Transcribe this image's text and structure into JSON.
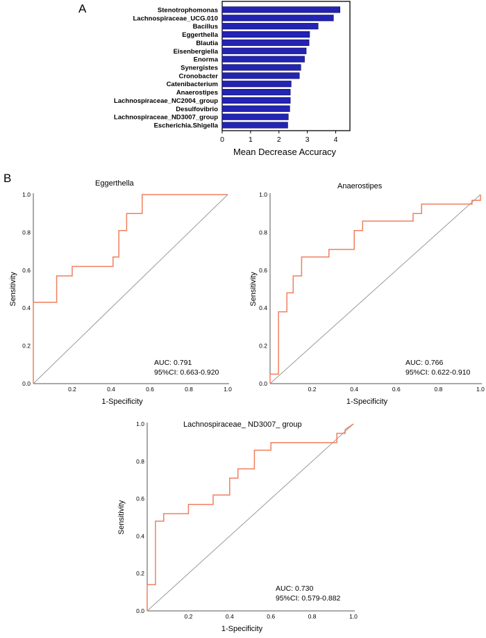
{
  "panel_labels": {
    "a": "A",
    "b": "B"
  },
  "colors": {
    "bar": "#2323b4",
    "bar_stroke": "#0a0a50",
    "roc": "#ef7f5f",
    "diag": "#9a9a9a",
    "axis": "#000000"
  },
  "chart_data": [
    {
      "type": "bar",
      "orientation": "horizontal",
      "title": "",
      "xlabel": "Mean Decrease Accuracy",
      "ylabel": "",
      "xlim": [
        0,
        4.5
      ],
      "xticks": [
        0,
        1,
        2,
        3,
        4
      ],
      "categories": [
        "Stenotrophomonas",
        "Lachnospiraceae_UCG.010",
        "Bacillus",
        "Eggerthella",
        "Blautia",
        "Eisenbergiella",
        "Enorma",
        "Synergistes",
        "Cronobacter",
        "Catenibacterium",
        "Anaerostipes",
        "Lachnospiraceae_NC2004_group",
        "Desulfovibrio",
        "Lachnospiraceae_ND3007_group",
        "Escherichia.Shigella"
      ],
      "values": [
        4.15,
        3.92,
        3.38,
        3.08,
        3.06,
        2.96,
        2.9,
        2.77,
        2.72,
        2.43,
        2.4,
        2.4,
        2.38,
        2.33,
        2.31
      ]
    },
    {
      "type": "line",
      "title": "Eggerthella",
      "xlabel": "1-Specificity",
      "ylabel": "Sensitivity",
      "xlim": [
        0,
        1
      ],
      "ylim": [
        0,
        1
      ],
      "xticks": [
        "0.2",
        "0.4",
        "0.6",
        "0.8",
        "1.0"
      ],
      "yticks": [
        "0.0",
        "0.2",
        "0.4",
        "0.6",
        "0.8",
        "1.0"
      ],
      "auc": "AUC: 0.791",
      "ci": "95%CI: 0.663-0.920",
      "x": [
        0,
        0,
        0.12,
        0.12,
        0.2,
        0.2,
        0.41,
        0.41,
        0.44,
        0.44,
        0.48,
        0.48,
        0.56,
        0.56,
        1.0
      ],
      "y": [
        0,
        0.43,
        0.43,
        0.57,
        0.57,
        0.62,
        0.62,
        0.67,
        0.67,
        0.81,
        0.81,
        0.9,
        0.9,
        1.0,
        1.0
      ]
    },
    {
      "type": "line",
      "title": "Anaerostipes",
      "xlabel": "1-Specificity",
      "ylabel": "Sensitivity",
      "xlim": [
        0,
        1
      ],
      "ylim": [
        0,
        1
      ],
      "xticks": [
        "0.2",
        "0.4",
        "0.6",
        "0.8",
        "1.0"
      ],
      "yticks": [
        "0.0",
        "0.2",
        "0.4",
        "0.6",
        "0.8",
        "1.0"
      ],
      "auc": "AUC: 0.766",
      "ci": "95%CI: 0.622-0.910",
      "x": [
        0,
        0,
        0.04,
        0.04,
        0.08,
        0.08,
        0.11,
        0.11,
        0.15,
        0.15,
        0.28,
        0.28,
        0.4,
        0.4,
        0.44,
        0.44,
        0.68,
        0.68,
        0.72,
        0.72,
        0.96,
        0.96,
        1.0,
        1.0
      ],
      "y": [
        0,
        0.05,
        0.05,
        0.38,
        0.38,
        0.48,
        0.48,
        0.57,
        0.57,
        0.67,
        0.67,
        0.71,
        0.71,
        0.81,
        0.81,
        0.86,
        0.86,
        0.9,
        0.9,
        0.95,
        0.95,
        0.97,
        0.97,
        1.0
      ]
    },
    {
      "type": "line",
      "title": "Lachnospiraceae_ ND3007_ group",
      "xlabel": "1-Specificity",
      "ylabel": "Sensitivity",
      "xlim": [
        0,
        1
      ],
      "ylim": [
        0,
        1
      ],
      "xticks": [
        "0.2",
        "0.4",
        "0.6",
        "0.8",
        "1.0"
      ],
      "yticks": [
        "0.0",
        "0.2",
        "0.4",
        "0.6",
        "0.8",
        "1.0"
      ],
      "auc": "AUC: 0.730",
      "ci": "95%CI: 0.579-0.882",
      "x": [
        0,
        0,
        0.04,
        0.04,
        0.08,
        0.08,
        0.2,
        0.2,
        0.32,
        0.32,
        0.4,
        0.4,
        0.44,
        0.44,
        0.52,
        0.52,
        0.6,
        0.6,
        0.92,
        0.92,
        0.96,
        0.96,
        1.0
      ],
      "y": [
        0,
        0.14,
        0.14,
        0.48,
        0.48,
        0.52,
        0.52,
        0.57,
        0.57,
        0.62,
        0.62,
        0.71,
        0.71,
        0.76,
        0.76,
        0.86,
        0.86,
        0.9,
        0.9,
        0.95,
        0.95,
        0.97,
        1.0
      ]
    }
  ]
}
